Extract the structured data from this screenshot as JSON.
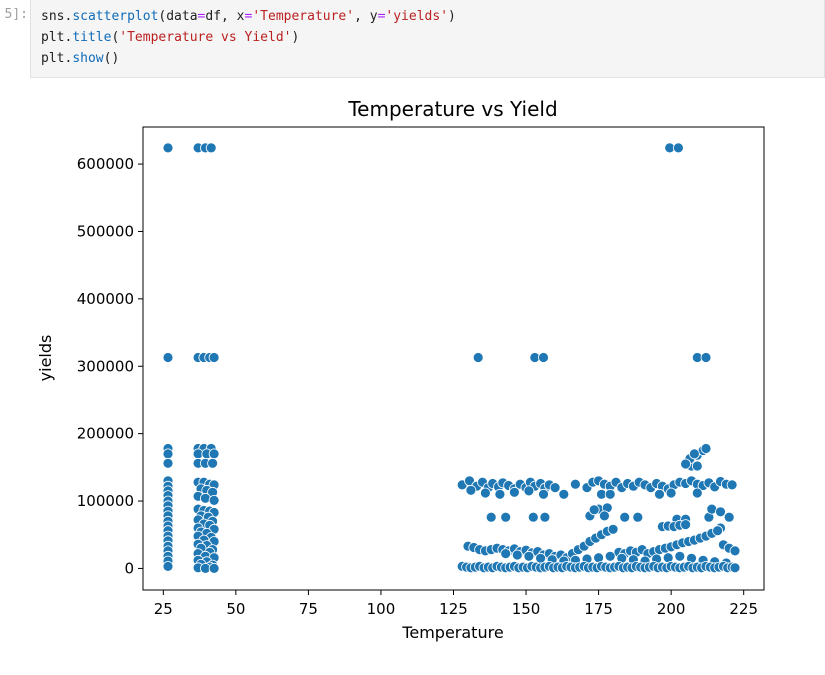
{
  "cell": {
    "prompt": "5]:",
    "code_lines": [
      [
        {
          "t": "sns.",
          "c": ""
        },
        {
          "t": "scatterplot",
          "c": "fn"
        },
        {
          "t": "(data",
          "c": ""
        },
        {
          "t": "=",
          "c": "op"
        },
        {
          "t": "df, x",
          "c": ""
        },
        {
          "t": "=",
          "c": "op"
        },
        {
          "t": "'Temperature'",
          "c": "str"
        },
        {
          "t": ", y",
          "c": ""
        },
        {
          "t": "=",
          "c": "op"
        },
        {
          "t": "'yields'",
          "c": "str"
        },
        {
          "t": ")",
          "c": ""
        }
      ],
      [
        {
          "t": "plt.",
          "c": ""
        },
        {
          "t": "title",
          "c": "fn"
        },
        {
          "t": "(",
          "c": ""
        },
        {
          "t": "'Temperature vs Yield'",
          "c": "str"
        },
        {
          "t": ")",
          "c": ""
        }
      ],
      [
        {
          "t": "plt.",
          "c": ""
        },
        {
          "t": "show",
          "c": "fn"
        },
        {
          "t": "()",
          "c": ""
        }
      ]
    ]
  },
  "chart_data": {
    "type": "scatter",
    "title": "Temperature vs Yield",
    "xlabel": "Temperature",
    "ylabel": "yields",
    "xlim": [
      18,
      232
    ],
    "ylim": [
      -32000,
      655000
    ],
    "xticks": [
      25,
      50,
      75,
      100,
      125,
      150,
      175,
      200,
      225
    ],
    "yticks": [
      0,
      100000,
      200000,
      300000,
      400000,
      500000,
      600000
    ],
    "grid": false,
    "marker_color": "#1f77b4",
    "marker_edge_color": "#ffffff",
    "points": [
      [
        26.6,
        624000
      ],
      [
        26.6,
        313000
      ],
      [
        26.6,
        178000
      ],
      [
        26.6,
        170000
      ],
      [
        26.6,
        156000
      ],
      [
        26.6,
        130000
      ],
      [
        26.6,
        122000
      ],
      [
        26.6,
        115000
      ],
      [
        26.6,
        108000
      ],
      [
        26.6,
        100000
      ],
      [
        26.6,
        93000
      ],
      [
        26.6,
        85000
      ],
      [
        26.6,
        78000
      ],
      [
        26.6,
        70000
      ],
      [
        26.6,
        63000
      ],
      [
        26.6,
        56000
      ],
      [
        26.6,
        48000
      ],
      [
        26.6,
        41000
      ],
      [
        26.6,
        33000
      ],
      [
        26.6,
        26000
      ],
      [
        26.6,
        18000
      ],
      [
        26.6,
        11000
      ],
      [
        26.6,
        3000
      ],
      [
        37,
        624000
      ],
      [
        39.5,
        624000
      ],
      [
        41.5,
        624000
      ],
      [
        37,
        313000
      ],
      [
        39,
        313000
      ],
      [
        41,
        313000
      ],
      [
        42.5,
        313000
      ],
      [
        37,
        178000
      ],
      [
        39,
        178000
      ],
      [
        41.5,
        178000
      ],
      [
        37,
        170000
      ],
      [
        40,
        170000
      ],
      [
        42.5,
        170000
      ],
      [
        37,
        156000
      ],
      [
        39.5,
        156000
      ],
      [
        42,
        156000
      ],
      [
        37,
        128000
      ],
      [
        39,
        128000
      ],
      [
        41,
        125000
      ],
      [
        42.5,
        124000
      ],
      [
        38,
        118000
      ],
      [
        40,
        116000
      ],
      [
        42,
        113000
      ],
      [
        37,
        107000
      ],
      [
        39.5,
        104000
      ],
      [
        42.5,
        101000
      ],
      [
        37,
        88000
      ],
      [
        39,
        86000
      ],
      [
        41,
        85000
      ],
      [
        42.5,
        83000
      ],
      [
        38,
        78000
      ],
      [
        40.5,
        76000
      ],
      [
        37,
        72000
      ],
      [
        42,
        70000
      ],
      [
        39,
        66000
      ],
      [
        41,
        64000
      ],
      [
        37,
        60000
      ],
      [
        42.5,
        58000
      ],
      [
        38,
        54000
      ],
      [
        40,
        52000
      ],
      [
        37,
        48000
      ],
      [
        41.5,
        46000
      ],
      [
        39,
        42000
      ],
      [
        42.5,
        40000
      ],
      [
        37,
        36000
      ],
      [
        40,
        34000
      ],
      [
        38,
        30000
      ],
      [
        42,
        28000
      ],
      [
        41,
        24000
      ],
      [
        37,
        22000
      ],
      [
        39.5,
        18000
      ],
      [
        42.5,
        16000
      ],
      [
        37,
        12000
      ],
      [
        40,
        10000
      ],
      [
        38,
        6000
      ],
      [
        42,
        5000
      ],
      [
        41,
        2000
      ],
      [
        37,
        1000
      ],
      [
        39.5,
        0
      ],
      [
        42.5,
        0
      ],
      [
        133.5,
        313000
      ],
      [
        153,
        313000
      ],
      [
        156,
        313000
      ],
      [
        209,
        313000
      ],
      [
        212,
        313000
      ],
      [
        199.5,
        624000
      ],
      [
        202.5,
        624000
      ],
      [
        128,
        124000
      ],
      [
        130.5,
        130000
      ],
      [
        133,
        122000
      ],
      [
        135,
        128000
      ],
      [
        137,
        120000
      ],
      [
        138.5,
        126000
      ],
      [
        140.5,
        121000
      ],
      [
        142,
        127000
      ],
      [
        144,
        123000
      ],
      [
        146,
        118000
      ],
      [
        148,
        125000
      ],
      [
        150,
        120000
      ],
      [
        151.5,
        128000
      ],
      [
        153,
        122000
      ],
      [
        155,
        126000
      ],
      [
        156.5,
        119000
      ],
      [
        158,
        124000
      ],
      [
        160,
        120000
      ],
      [
        163,
        110000
      ],
      [
        167,
        125000
      ],
      [
        171,
        120000
      ],
      [
        173,
        128000
      ],
      [
        175,
        130000
      ],
      [
        177,
        125000
      ],
      [
        179,
        122000
      ],
      [
        181,
        128000
      ],
      [
        183,
        120000
      ],
      [
        185,
        126000
      ],
      [
        187,
        122000
      ],
      [
        189,
        128000
      ],
      [
        191,
        124000
      ],
      [
        193,
        120000
      ],
      [
        195,
        126000
      ],
      [
        197,
        122000
      ],
      [
        199,
        118000
      ],
      [
        201,
        124000
      ],
      [
        203,
        128000
      ],
      [
        205,
        126000
      ],
      [
        207,
        130000
      ],
      [
        209,
        125000
      ],
      [
        211,
        123000
      ],
      [
        213,
        127000
      ],
      [
        215,
        121000
      ],
      [
        217,
        129000
      ],
      [
        219,
        125000
      ],
      [
        221,
        124000
      ],
      [
        131,
        116000
      ],
      [
        136,
        112000
      ],
      [
        141,
        110000
      ],
      [
        146,
        113000
      ],
      [
        151,
        115000
      ],
      [
        156,
        110000
      ],
      [
        176,
        110000
      ],
      [
        179,
        110000
      ],
      [
        196,
        110000
      ],
      [
        200,
        112000
      ],
      [
        209,
        112000
      ],
      [
        138,
        76000
      ],
      [
        143,
        76000
      ],
      [
        152.5,
        76000
      ],
      [
        156.5,
        76000
      ],
      [
        184,
        76000
      ],
      [
        188.5,
        76000
      ],
      [
        213,
        76000
      ],
      [
        220,
        76000
      ],
      [
        202,
        73000
      ],
      [
        205,
        73000
      ],
      [
        214,
        88000
      ],
      [
        217,
        84000
      ],
      [
        207,
        152000
      ],
      [
        209,
        152000
      ],
      [
        206.5,
        163000
      ],
      [
        209,
        168000
      ],
      [
        211,
        175000
      ],
      [
        208,
        170000
      ],
      [
        212,
        178000
      ],
      [
        205,
        155000
      ],
      [
        175,
        88000
      ],
      [
        178,
        90000
      ],
      [
        172,
        78000
      ],
      [
        173.5,
        87000
      ],
      [
        177,
        78000
      ],
      [
        197,
        62000
      ],
      [
        199,
        63000
      ],
      [
        201,
        62000
      ],
      [
        203,
        64000
      ],
      [
        205,
        65000
      ],
      [
        217,
        60000
      ],
      [
        130,
        33000
      ],
      [
        132,
        31000
      ],
      [
        134,
        28000
      ],
      [
        136,
        26000
      ],
      [
        138,
        28000
      ],
      [
        140,
        30000
      ],
      [
        142,
        28000
      ],
      [
        144,
        26000
      ],
      [
        146,
        29000
      ],
      [
        148,
        25000
      ],
      [
        150,
        27000
      ],
      [
        152,
        23000
      ],
      [
        154,
        25000
      ],
      [
        156,
        20000
      ],
      [
        158,
        22000
      ],
      [
        160,
        18000
      ],
      [
        162,
        20000
      ],
      [
        164,
        16000
      ],
      [
        166,
        22000
      ],
      [
        168,
        28000
      ],
      [
        170,
        33000
      ],
      [
        172,
        40000
      ],
      [
        174,
        45000
      ],
      [
        176,
        50000
      ],
      [
        178,
        55000
      ],
      [
        180,
        58000
      ],
      [
        182,
        24000
      ],
      [
        184,
        22000
      ],
      [
        186,
        26000
      ],
      [
        188,
        24000
      ],
      [
        190,
        28000
      ],
      [
        192,
        22000
      ],
      [
        194,
        25000
      ],
      [
        196,
        28000
      ],
      [
        198,
        30000
      ],
      [
        200,
        32000
      ],
      [
        202,
        35000
      ],
      [
        204,
        38000
      ],
      [
        206,
        40000
      ],
      [
        208,
        42000
      ],
      [
        210,
        45000
      ],
      [
        212,
        48000
      ],
      [
        214,
        52000
      ],
      [
        216,
        56000
      ],
      [
        218,
        35000
      ],
      [
        220,
        30000
      ],
      [
        222,
        26000
      ],
      [
        143,
        22000
      ],
      [
        147,
        20000
      ],
      [
        151,
        18000
      ],
      [
        155,
        15000
      ],
      [
        159,
        13000
      ],
      [
        163,
        11000
      ],
      [
        167,
        12000
      ],
      [
        171,
        14000
      ],
      [
        175,
        16000
      ],
      [
        179,
        18000
      ],
      [
        183,
        15000
      ],
      [
        187,
        13000
      ],
      [
        191,
        11000
      ],
      [
        195,
        14000
      ],
      [
        199,
        16000
      ],
      [
        203,
        18000
      ],
      [
        207,
        15000
      ],
      [
        211,
        12000
      ],
      [
        215,
        10000
      ],
      [
        219,
        8000
      ],
      [
        128,
        3000
      ],
      [
        129.5,
        2000
      ],
      [
        131,
        1000
      ],
      [
        132.5,
        2000
      ],
      [
        134,
        3000
      ],
      [
        135.5,
        1000
      ],
      [
        137,
        2000
      ],
      [
        138.5,
        1000
      ],
      [
        140,
        3000
      ],
      [
        141.5,
        2000
      ],
      [
        143,
        1000
      ],
      [
        144.5,
        2000
      ],
      [
        146,
        3000
      ],
      [
        147.5,
        1000
      ],
      [
        149,
        2000
      ],
      [
        150.5,
        1000
      ],
      [
        152,
        3000
      ],
      [
        153.5,
        2000
      ],
      [
        155,
        1000
      ],
      [
        156.5,
        2000
      ],
      [
        158,
        3000
      ],
      [
        159.5,
        1000
      ],
      [
        161,
        2000
      ],
      [
        162.5,
        1000
      ],
      [
        164,
        3000
      ],
      [
        165.5,
        2000
      ],
      [
        167,
        1000
      ],
      [
        168.5,
        2000
      ],
      [
        170,
        3000
      ],
      [
        171.5,
        1000
      ],
      [
        173,
        2000
      ],
      [
        174.5,
        1000
      ],
      [
        176,
        3000
      ],
      [
        177.5,
        2000
      ],
      [
        179,
        1000
      ],
      [
        180.5,
        2000
      ],
      [
        182,
        3000
      ],
      [
        183.5,
        1000
      ],
      [
        185,
        2000
      ],
      [
        186.5,
        1000
      ],
      [
        188,
        3000
      ],
      [
        189.5,
        2000
      ],
      [
        191,
        1000
      ],
      [
        192.5,
        2000
      ],
      [
        194,
        3000
      ],
      [
        195.5,
        1000
      ],
      [
        197,
        2000
      ],
      [
        198.5,
        1000
      ],
      [
        200,
        3000
      ],
      [
        201.5,
        2000
      ],
      [
        203,
        1000
      ],
      [
        204.5,
        2000
      ],
      [
        206,
        3000
      ],
      [
        207.5,
        1000
      ],
      [
        209,
        2000
      ],
      [
        210.5,
        1000
      ],
      [
        212,
        3000
      ],
      [
        213.5,
        2000
      ],
      [
        215,
        1000
      ],
      [
        216.5,
        2000
      ],
      [
        218,
        3000
      ],
      [
        219.5,
        1000
      ],
      [
        221,
        2000
      ],
      [
        222,
        1000
      ]
    ]
  }
}
